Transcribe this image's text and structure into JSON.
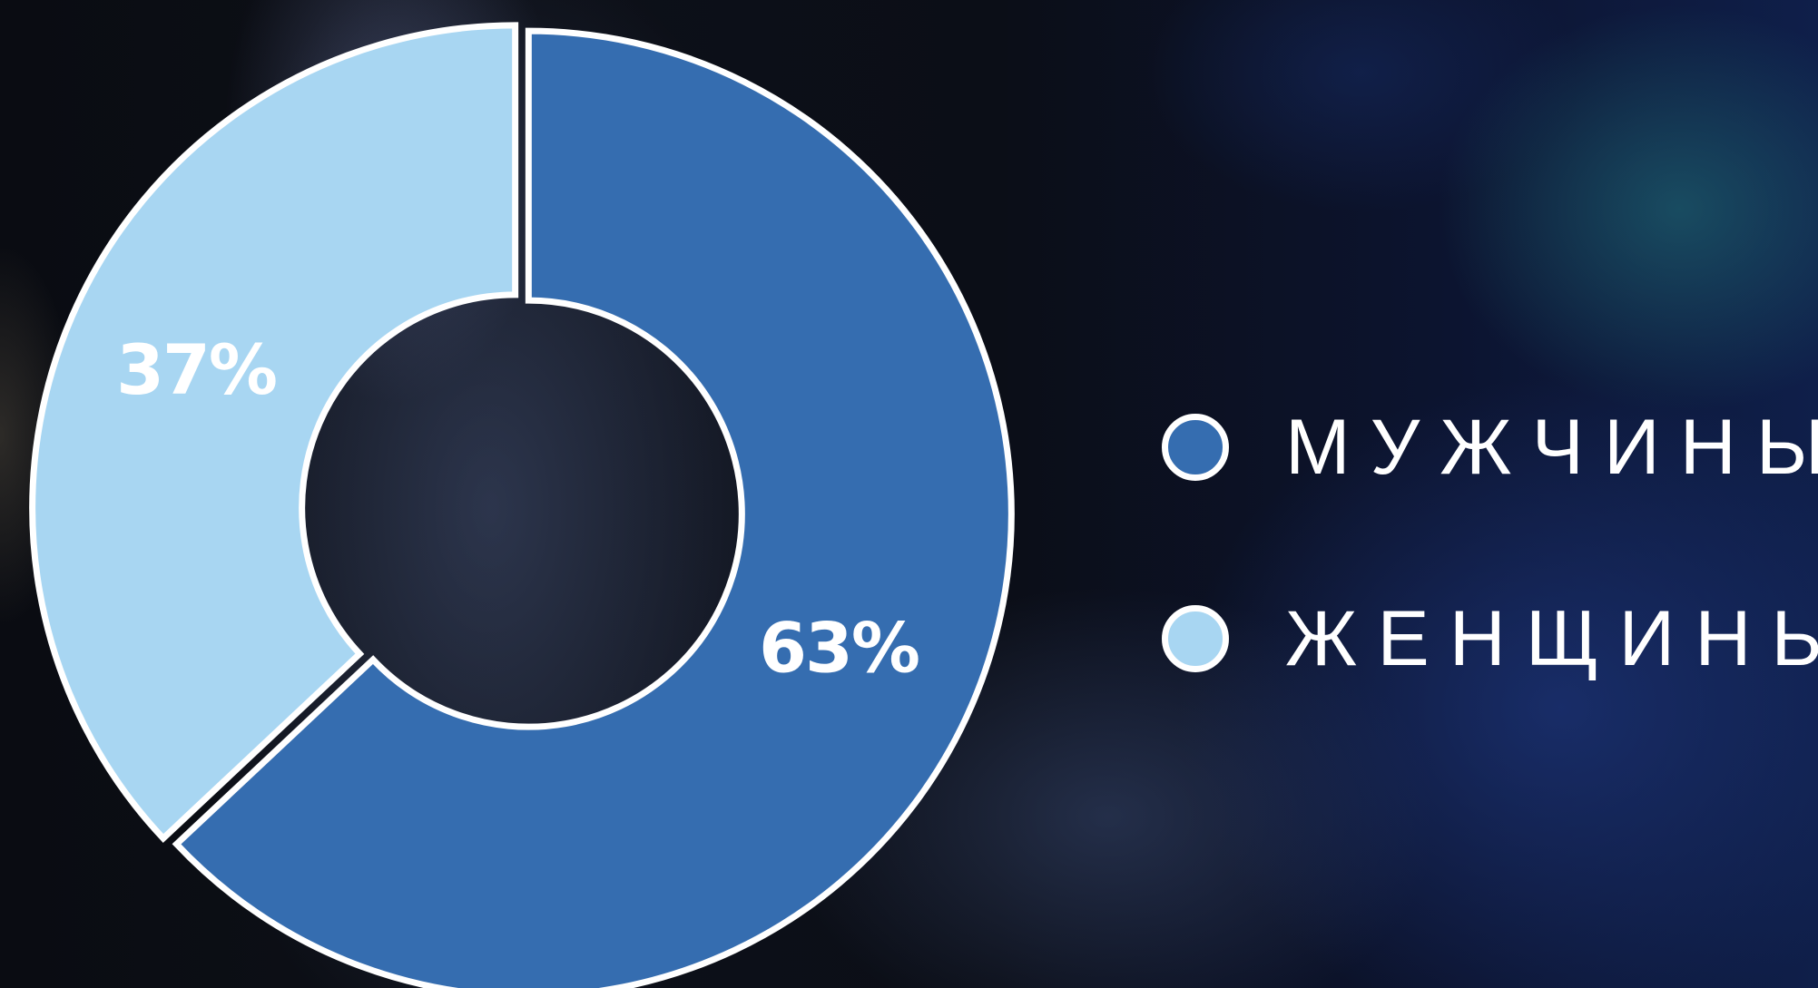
{
  "chart_data": {
    "type": "pie",
    "categories": [
      "МУЖЧИНЫ",
      "ЖЕНЩИНЫ"
    ],
    "values": [
      63,
      37
    ],
    "labels": [
      "63%",
      "37%"
    ],
    "colors": [
      "#356db0",
      "#a8d6f2"
    ],
    "donut": true,
    "legend_position": "right"
  }
}
